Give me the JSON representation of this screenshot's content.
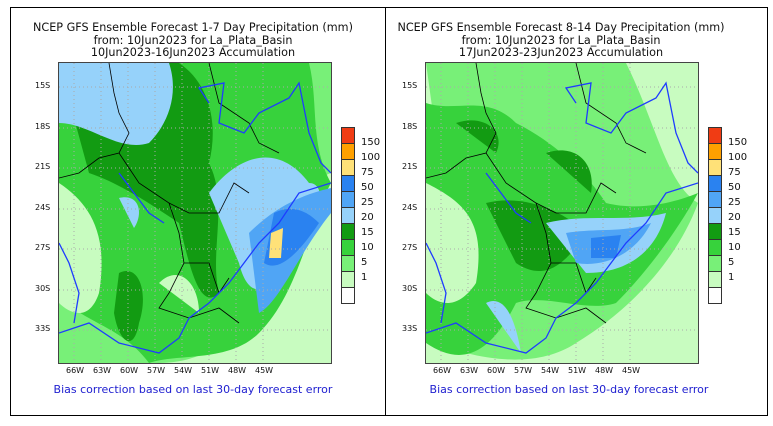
{
  "panels": [
    {
      "title_lines": [
        "NCEP GFS Ensemble Forecast 1-7 Day Precipitation (mm)",
        "from: 10Jun2023   for La_Plata_Basin",
        "10Jun2023-16Jun2023 Accumulation"
      ],
      "footer": "Bias correction based on last 30-day forecast error"
    },
    {
      "title_lines": [
        "NCEP GFS Ensemble Forecast 8-14 Day Precipitation (mm)",
        "from: 10Jun2023   for La_Plata_Basin",
        "17Jun2023-23Jun2023 Accumulation"
      ],
      "footer": "Bias correction based on last 30-day forecast error"
    }
  ],
  "lat_labels": [
    "15S",
    "18S",
    "21S",
    "24S",
    "27S",
    "30S",
    "33S"
  ],
  "lon_labels": [
    "66W",
    "63W",
    "60W",
    "57W",
    "54W",
    "51W",
    "48W",
    "45W"
  ],
  "legend": {
    "labels": [
      "150",
      "100",
      "75",
      "50",
      "25",
      "20",
      "15",
      "10",
      "5",
      "1"
    ],
    "colors": [
      "#f03c14",
      "#ffa000",
      "#ffe178",
      "#2a82f0",
      "#50a5f5",
      "#96d2fa",
      "#129b12",
      "#37d23c",
      "#78f078",
      "#c8fcc0",
      "#ffffff"
    ]
  },
  "colors": {
    "river": "#1e3cff",
    "border": "#000000",
    "footer_text": "#2020d0"
  }
}
